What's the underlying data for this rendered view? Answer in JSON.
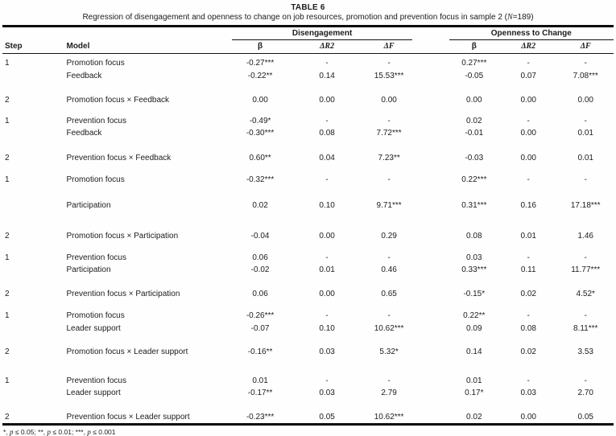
{
  "page": {
    "title": "TABLE 6",
    "subtitle": {
      "before": "Regression of disengagement and openness to change on job resources, promotion and prevention focus in sample 2 (",
      "n": "N",
      "after": "=189)"
    }
  },
  "table": {
    "col_headers": {
      "step": "Step",
      "model": "Model"
    },
    "groups": [
      {
        "label": "Disengagement",
        "beta": "β",
        "dr2": "ΔR2",
        "df": "ΔF"
      },
      {
        "label": "Openness to Change",
        "beta": "β",
        "dr2": "ΔR2",
        "df": "ΔF"
      }
    ],
    "rows": [
      {
        "step": "1",
        "model": "Promotion focus",
        "values": [
          "-0.27***",
          "-",
          "-",
          "0.27***",
          "-",
          "-"
        ],
        "gap": 4
      },
      {
        "step": "",
        "model": "Feedback",
        "values": [
          "-0.22**",
          "0.14",
          "15.53***",
          "-0.05",
          "0.07",
          "7.08***"
        ],
        "gap": 1
      },
      {
        "step": "2",
        "model": "Promotion focus × Feedback",
        "values": [
          "0.00",
          "0.00",
          "0.00",
          "0.00",
          "0.00",
          "0.00"
        ],
        "gap": 15
      },
      {
        "step": "1",
        "model": "Prevention focus",
        "values": [
          "-0.49*",
          "-",
          "-",
          "0.02",
          "-",
          "-"
        ],
        "gap": 11
      },
      {
        "step": "",
        "model": "Feedback",
        "values": [
          "-0.30***",
          "0.08",
          "7.72***",
          "-0.01",
          "0.00",
          "0.01"
        ],
        "gap": 0
      },
      {
        "step": "2",
        "model": "Prevention focus × Feedback",
        "values": [
          "0.60**",
          "0.04",
          "7.23**",
          "-0.03",
          "0.00",
          "0.01"
        ],
        "gap": 16
      },
      {
        "step": "1",
        "model": "Promotion focus",
        "values": [
          "-0.32***",
          "-",
          "-",
          "0.22***",
          "-",
          "-"
        ],
        "gap": 12
      },
      {
        "step": "",
        "model": "Participation",
        "values": [
          "0.02",
          "0.10",
          "9.71***",
          "0.31***",
          "0.16",
          "17.18***"
        ],
        "gap": 17
      },
      {
        "step": "2",
        "model": "Promotion focus × Participation",
        "values": [
          "-0.04",
          "0.00",
          "0.29",
          "0.08",
          "0.01",
          "1.46"
        ],
        "gap": 23
      },
      {
        "step": "1",
        "model": "Prevention focus",
        "values": [
          "0.06",
          "-",
          "-",
          "0.03",
          "-",
          "-"
        ],
        "gap": 12
      },
      {
        "step": "",
        "model": "Participation",
        "values": [
          "-0.02",
          "0.01",
          "0.46",
          "0.33***",
          "0.11",
          "11.77***"
        ],
        "gap": 0
      },
      {
        "step": "2",
        "model": "Prevention focus × Participation",
        "values": [
          "0.06",
          "0.00",
          "0.65",
          "-0.15*",
          "0.02",
          "4.52*"
        ],
        "gap": 15
      },
      {
        "step": "1",
        "model": "Promotion focus",
        "values": [
          "-0.26***",
          "-",
          "-",
          "0.22**",
          "-",
          "-"
        ],
        "gap": 12
      },
      {
        "step": "",
        "model": "Leader support",
        "values": [
          "-0.07",
          "0.10",
          "10.62***",
          "0.09",
          "0.08",
          "8.11***"
        ],
        "gap": 1
      },
      {
        "step": "2",
        "model": "Promotion focus × Leader support",
        "values": [
          "-0.16**",
          "0.03",
          "5.32*",
          "0.14",
          "0.02",
          "3.53"
        ],
        "gap": 14
      },
      {
        "step": "1",
        "model": "Prevention focus",
        "values": [
          "0.01",
          "-",
          "-",
          "0.01",
          "-",
          "-"
        ],
        "gap": 21
      },
      {
        "step": "",
        "model": "Leader support",
        "values": [
          "-0.17**",
          "0.03",
          "2.79",
          "0.17*",
          "0.03",
          "2.70"
        ],
        "gap": 0
      },
      {
        "step": "2",
        "model": "Prevention focus × Leader support",
        "values": [
          "-0.23***",
          "0.05",
          "10.62***",
          "0.02",
          "0.00",
          "0.05"
        ],
        "gap": 15
      }
    ]
  },
  "footnote": {
    "a": "*, ",
    "p1": "p",
    "b": " ≤ 0.05; **, ",
    "p2": "p",
    "c": " ≤ 0.01; ***, ",
    "p3": "p",
    "d": " ≤ 0.001"
  }
}
